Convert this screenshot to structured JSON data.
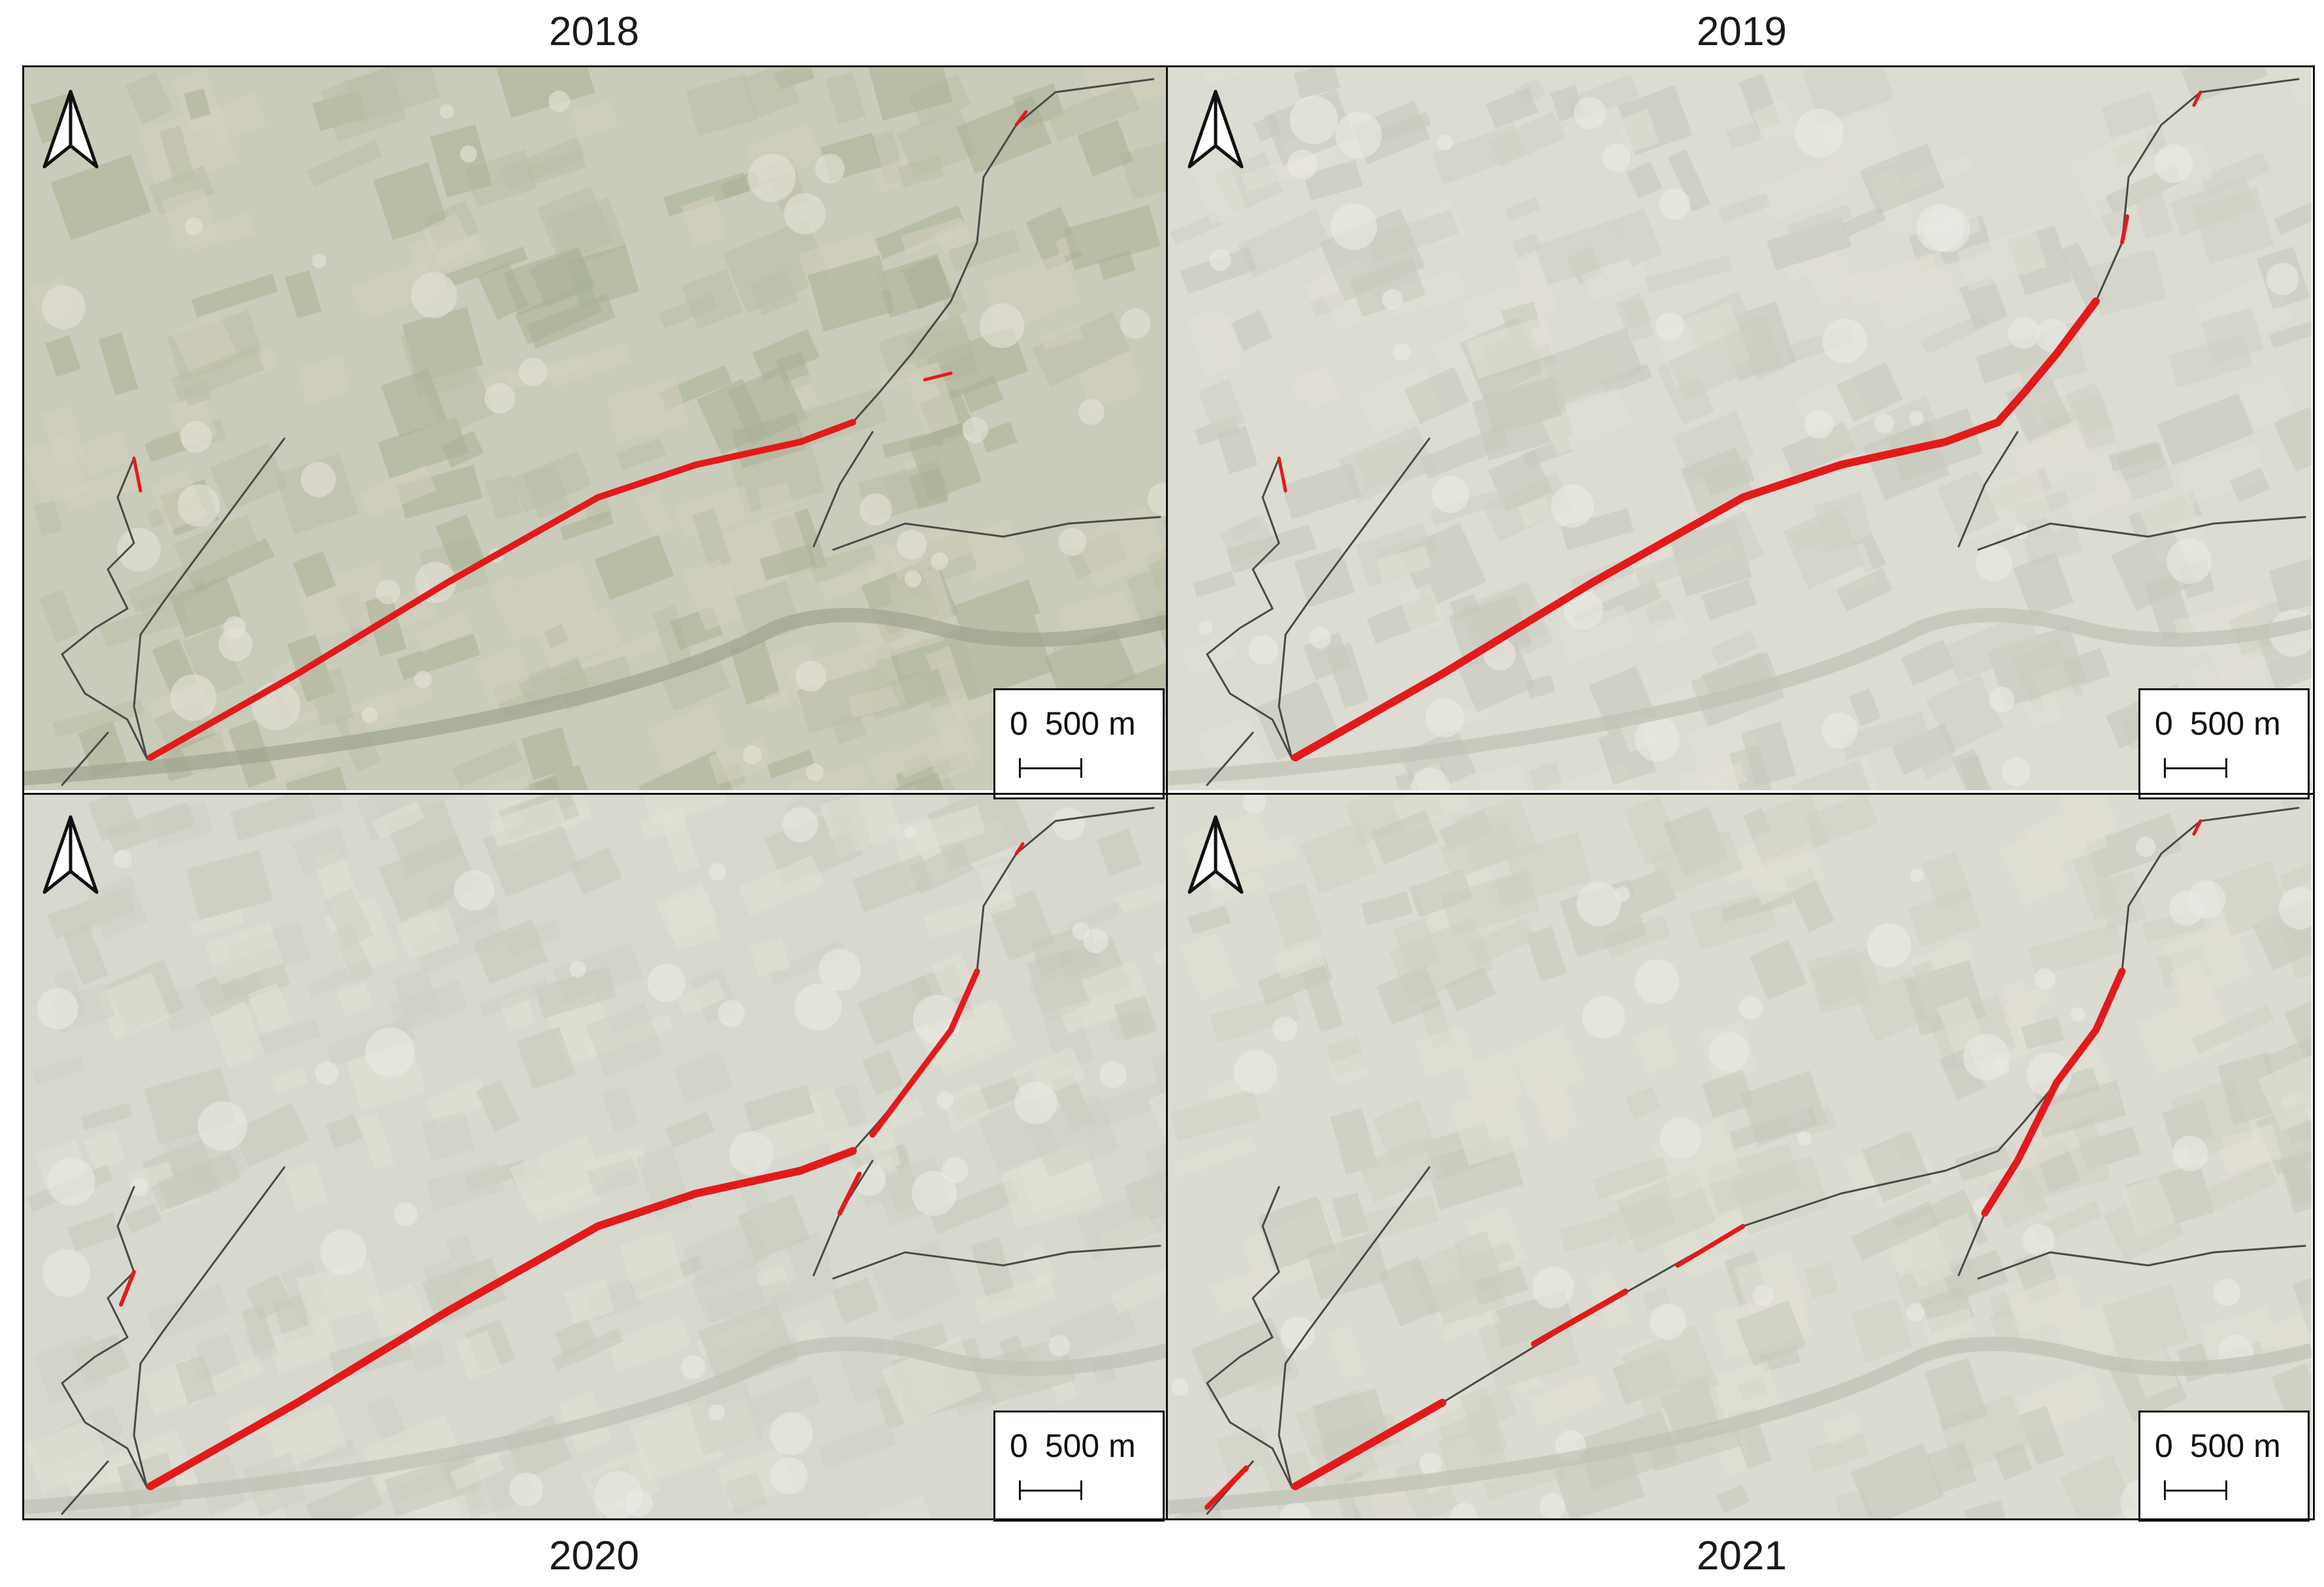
{
  "panels": [
    {
      "year": "2018",
      "scale_text_left": "0",
      "scale_text_right": "500 m",
      "tint": "#c9ccba"
    },
    {
      "year": "2019",
      "scale_text_left": "0",
      "scale_text_right": "500 m",
      "tint": "#dcdcd2"
    },
    {
      "year": "2020",
      "scale_text_left": "0",
      "scale_text_right": "500 m",
      "tint": "#d7d9cf"
    },
    {
      "year": "2021",
      "scale_text_left": "0",
      "scale_text_right": "500 m",
      "tint": "#dbdbd1"
    }
  ],
  "colors": {
    "highlight": "#e31a1c",
    "road": "#4a4a4a",
    "frame": "#111111"
  },
  "icons": {
    "north_arrow": "north-arrow-icon"
  }
}
